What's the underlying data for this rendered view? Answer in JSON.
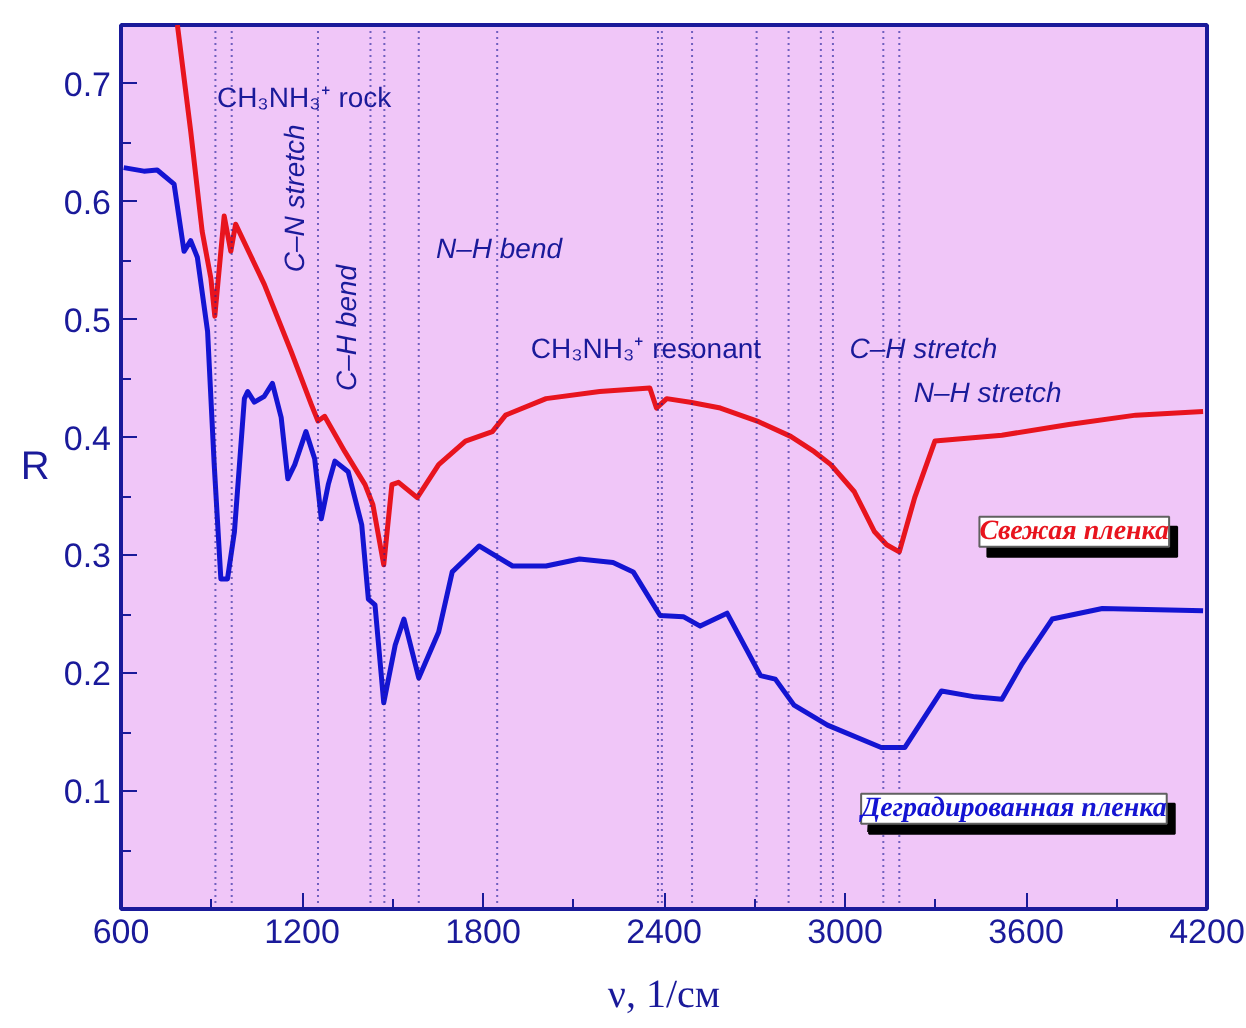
{
  "chart_data": {
    "type": "line",
    "xlabel": "ν, 1/см",
    "ylabel": "R",
    "xlim": [
      600,
      4200
    ],
    "xticks": [
      600,
      1200,
      1800,
      2400,
      3000,
      3600,
      4200
    ],
    "ylim": [
      0,
      0.75
    ],
    "yticks": [
      0.1,
      0.2,
      0.3,
      0.4,
      0.5,
      0.6,
      0.7
    ],
    "grid": false,
    "legend": false,
    "marker": "none",
    "line_style": "solid",
    "series": [
      {
        "name": "Свежая пленка",
        "color": "#e8141e",
        "x": [
          787,
          831,
          869,
          898,
          911,
          942,
          964,
          980,
          1075,
          1164,
          1231,
          1253,
          1275,
          1342,
          1409,
          1435,
          1471,
          1498,
          1520,
          1582,
          1653,
          1742,
          1831,
          1875,
          2009,
          2187,
          2353,
          2375,
          2409,
          2487,
          2587,
          2709,
          2820,
          2898,
          2953,
          3031,
          3098,
          3138,
          3180,
          3231,
          3298,
          3520,
          3742,
          3964,
          4187
        ],
        "values": [
          0.75,
          0.66,
          0.575,
          0.535,
          0.503,
          0.588,
          0.558,
          0.581,
          0.53,
          0.473,
          0.428,
          0.414,
          0.418,
          0.388,
          0.36,
          0.343,
          0.292,
          0.36,
          0.362,
          0.349,
          0.377,
          0.397,
          0.405,
          0.419,
          0.433,
          0.439,
          0.442,
          0.425,
          0.433,
          0.43,
          0.425,
          0.414,
          0.401,
          0.388,
          0.377,
          0.354,
          0.32,
          0.309,
          0.303,
          0.349,
          0.397,
          0.402,
          0.411,
          0.419,
          0.422
        ]
      },
      {
        "name": "Деградированная пленка",
        "color": "#1414d2",
        "x": [
          609,
          676,
          720,
          776,
          809,
          831,
          853,
          887,
          909,
          931,
          953,
          976,
          1009,
          1020,
          1042,
          1075,
          1102,
          1131,
          1153,
          1176,
          1213,
          1242,
          1264,
          1287,
          1309,
          1353,
          1398,
          1420,
          1442,
          1471,
          1509,
          1538,
          1587,
          1653,
          1698,
          1787,
          1898,
          2009,
          2120,
          2231,
          2298,
          2387,
          2464,
          2520,
          2609,
          2720,
          2769,
          2831,
          2942,
          3120,
          3198,
          3320,
          3431,
          3520,
          3587,
          3687,
          3853,
          4187
        ],
        "values": [
          0.629,
          0.626,
          0.627,
          0.615,
          0.558,
          0.567,
          0.553,
          0.49,
          0.377,
          0.28,
          0.28,
          0.32,
          0.433,
          0.439,
          0.43,
          0.435,
          0.446,
          0.417,
          0.365,
          0.377,
          0.405,
          0.382,
          0.331,
          0.36,
          0.38,
          0.371,
          0.326,
          0.263,
          0.258,
          0.175,
          0.224,
          0.246,
          0.196,
          0.235,
          0.286,
          0.308,
          0.291,
          0.291,
          0.297,
          0.294,
          0.286,
          0.249,
          0.248,
          0.24,
          0.251,
          0.198,
          0.195,
          0.173,
          0.156,
          0.137,
          0.137,
          0.185,
          0.18,
          0.178,
          0.208,
          0.246,
          0.255,
          0.253
        ]
      }
    ],
    "ref_lines": [
      {
        "axis": "x",
        "value": 913,
        "line_style": "dotted",
        "color": "#1a1a9a"
      },
      {
        "axis": "x",
        "value": 967,
        "line_style": "dotted",
        "color": "#1a1a9a"
      },
      {
        "axis": "x",
        "value": 1253,
        "line_style": "dotted",
        "color": "#1a1a9a"
      },
      {
        "axis": "x",
        "value": 1427,
        "line_style": "dotted",
        "color": "#1a1a9a"
      },
      {
        "axis": "x",
        "value": 1473,
        "line_style": "dotted",
        "color": "#1a1a9a"
      },
      {
        "axis": "x",
        "value": 1587,
        "line_style": "dotted",
        "color": "#1a1a9a"
      },
      {
        "axis": "x",
        "value": 1847,
        "line_style": "dotted",
        "color": "#1a1a9a"
      },
      {
        "axis": "x",
        "value": 2380,
        "line_style": "dotted",
        "color": "#1a1a9a"
      },
      {
        "axis": "x",
        "value": 2393,
        "line_style": "dotted",
        "color": "#1a1a9a"
      },
      {
        "axis": "x",
        "value": 2493,
        "line_style": "dotted",
        "color": "#1a1a9a"
      },
      {
        "axis": "x",
        "value": 2707,
        "line_style": "dotted",
        "color": "#1a1a9a"
      },
      {
        "axis": "x",
        "value": 2813,
        "line_style": "dotted",
        "color": "#1a1a9a"
      },
      {
        "axis": "x",
        "value": 2920,
        "line_style": "dotted",
        "color": "#1a1a9a"
      },
      {
        "axis": "x",
        "value": 2960,
        "line_style": "dotted",
        "color": "#1a1a9a"
      },
      {
        "axis": "x",
        "value": 3127,
        "line_style": "dotted",
        "color": "#1a1a9a"
      },
      {
        "axis": "x",
        "value": 3180,
        "line_style": "dotted",
        "color": "#1a1a9a"
      }
    ],
    "annotations": [
      "CH₃NH₃⁺ rock",
      "C–N stretch",
      "C–H bend",
      "N–H bend",
      "CH₃NH₃⁺ resonant",
      "C–H stretch",
      "N–H stretch"
    ]
  }
}
